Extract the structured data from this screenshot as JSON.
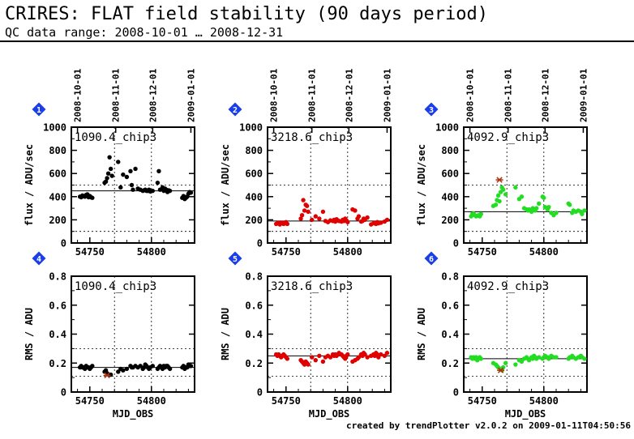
{
  "header": {
    "title": "CRIRES: FLAT field stability (90 days period)",
    "subtitle": "QC data range: 2008-10-01 … 2008-12-31"
  },
  "footer": {
    "credit": "created by trendPlotter v2.0.2 on 2009-01-11T04:50:56"
  },
  "colors": {
    "black_series": "#000000",
    "red_series": "#e00000",
    "green_series": "#22dd22",
    "outlier_marker": "#b03010",
    "badge": "#1a3fe8"
  },
  "chart_data": [
    {
      "type": "scatter",
      "panel": "1",
      "label": "1090.4_chip3",
      "xlabel": "",
      "ylabel": "flux / ADU/sec",
      "xlim": [
        54735,
        54835
      ],
      "ylim": [
        0,
        1000
      ],
      "xticks": [
        54750,
        54800
      ],
      "yticks": [
        0,
        200,
        400,
        600,
        800,
        1000
      ],
      "top_dates": [
        "2008-10-01",
        "2008-11-01",
        "2008-12-01",
        "2009-01-01"
      ],
      "reference_line": 450,
      "color": "black_series",
      "x": [
        54742,
        54743,
        54744,
        54745,
        54746,
        54747,
        54748,
        54749,
        54750,
        54751,
        54752,
        54762,
        54763,
        54764,
        54765,
        54766,
        54767,
        54768,
        54773,
        54775,
        54777,
        54780,
        54783,
        54784,
        54785,
        54787,
        54789,
        54791,
        54793,
        54794,
        54795,
        54796,
        54797,
        54798,
        54799,
        54801,
        54805,
        54806,
        54807,
        54809,
        54810,
        54811,
        54812,
        54813,
        54814,
        54815,
        54825,
        54826,
        54827,
        54828,
        54829,
        54830,
        54831,
        54832
      ],
      "y": [
        400,
        395,
        410,
        405,
        400,
        415,
        420,
        395,
        405,
        395,
        390,
        520,
        530,
        560,
        600,
        740,
        640,
        580,
        700,
        480,
        590,
        570,
        620,
        500,
        460,
        640,
        470,
        460,
        450,
        455,
        460,
        450,
        450,
        460,
        445,
        450,
        520,
        620,
        460,
        480,
        450,
        470,
        460,
        440,
        455,
        450,
        390,
        405,
        380,
        390,
        400,
        425,
        440,
        435
      ],
      "outliers": []
    },
    {
      "type": "scatter",
      "panel": "2",
      "label": "3218.6_chip3",
      "xlabel": "",
      "ylabel": "flux / ADU/sec",
      "xlim": [
        54735,
        54835
      ],
      "ylim": [
        0,
        1000
      ],
      "xticks": [
        54750,
        54800
      ],
      "yticks": [
        0,
        200,
        400,
        600,
        800,
        1000
      ],
      "top_dates": [
        "2008-10-01",
        "2008-11-01",
        "2008-12-01",
        "2009-01-01"
      ],
      "reference_line": 190,
      "color": "red_series",
      "x": [
        54742,
        54743,
        54744,
        54745,
        54746,
        54747,
        54748,
        54749,
        54750,
        54751,
        54762,
        54763,
        54764,
        54765,
        54766,
        54767,
        54768,
        54771,
        54774,
        54777,
        54780,
        54782,
        54784,
        54786,
        54788,
        54789,
        54790,
        54791,
        54792,
        54793,
        54795,
        54796,
        54797,
        54798,
        54799,
        54800,
        54804,
        54806,
        54808,
        54809,
        54811,
        54812,
        54813,
        54814,
        54816,
        54819,
        54821,
        54822,
        54823,
        54824,
        54825,
        54827,
        54830,
        54832
      ],
      "y": [
        165,
        170,
        175,
        160,
        170,
        175,
        165,
        170,
        180,
        165,
        210,
        240,
        370,
        280,
        330,
        320,
        270,
        200,
        230,
        210,
        270,
        190,
        180,
        195,
        190,
        200,
        185,
        205,
        195,
        190,
        185,
        200,
        190,
        210,
        195,
        180,
        290,
        280,
        210,
        230,
        185,
        190,
        210,
        200,
        220,
        160,
        170,
        175,
        165,
        180,
        170,
        175,
        185,
        200
      ],
      "outliers": []
    },
    {
      "type": "scatter",
      "panel": "3",
      "label": "4092.9_chip3",
      "xlabel": "",
      "ylabel": "flux / ADU/sec",
      "xlim": [
        54735,
        54835
      ],
      "ylim": [
        0,
        1000
      ],
      "xticks": [
        54750,
        54800
      ],
      "yticks": [
        0,
        200,
        400,
        600,
        800,
        1000
      ],
      "top_dates": [
        "2008-10-01",
        "2008-11-01",
        "2008-12-01",
        "2009-01-01"
      ],
      "reference_line": 270,
      "color": "green_series",
      "x": [
        54741,
        54742,
        54743,
        54744,
        54745,
        54746,
        54747,
        54748,
        54749,
        54759,
        54761,
        54762,
        54763,
        54764,
        54765,
        54766,
        54767,
        54769,
        54777,
        54780,
        54782,
        54784,
        54786,
        54787,
        54788,
        54790,
        54791,
        54792,
        54793,
        54794,
        54796,
        54799,
        54800,
        54801,
        54803,
        54804,
        54806,
        54808,
        54810,
        54820,
        54821,
        54823,
        54824,
        54826,
        54828,
        54830,
        54831,
        54833
      ],
      "y": [
        230,
        250,
        255,
        240,
        230,
        235,
        240,
        230,
        250,
        320,
        330,
        370,
        410,
        360,
        440,
        480,
        460,
        420,
        480,
        380,
        400,
        300,
        290,
        280,
        290,
        270,
        300,
        285,
        280,
        300,
        340,
        400,
        390,
        310,
        290,
        310,
        260,
        240,
        260,
        340,
        330,
        260,
        280,
        270,
        280,
        270,
        250,
        280
      ],
      "outliers": [
        {
          "x": 54764,
          "y": 545
        }
      ]
    },
    {
      "type": "scatter",
      "panel": "4",
      "label": "1090.4_chip3",
      "xlabel": "MJD_OBS",
      "ylabel": "RMS / ADU",
      "xlim": [
        54735,
        54835
      ],
      "ylim": [
        0,
        0.8
      ],
      "xticks": [
        54750,
        54800
      ],
      "yticks": [
        0,
        0.2,
        0.4,
        0.6,
        0.8
      ],
      "reference_line": 0.17,
      "color": "black_series",
      "x": [
        54742,
        54743,
        54744,
        54745,
        54746,
        54747,
        54748,
        54749,
        54750,
        54751,
        54752,
        54762,
        54763,
        54764,
        54766,
        54767,
        54773,
        54775,
        54777,
        54780,
        54783,
        54784,
        54785,
        54787,
        54789,
        54791,
        54793,
        54794,
        54795,
        54796,
        54797,
        54798,
        54799,
        54801,
        54805,
        54806,
        54807,
        54809,
        54810,
        54811,
        54812,
        54813,
        54814,
        54815,
        54825,
        54826,
        54827,
        54828,
        54829,
        54830,
        54831,
        54832
      ],
      "y": [
        0.17,
        0.18,
        0.17,
        0.17,
        0.16,
        0.18,
        0.17,
        0.17,
        0.16,
        0.17,
        0.18,
        0.14,
        0.15,
        0.13,
        0.12,
        0.12,
        0.14,
        0.16,
        0.15,
        0.16,
        0.18,
        0.17,
        0.17,
        0.18,
        0.17,
        0.18,
        0.16,
        0.17,
        0.19,
        0.18,
        0.17,
        0.16,
        0.17,
        0.18,
        0.16,
        0.17,
        0.18,
        0.16,
        0.18,
        0.17,
        0.18,
        0.18,
        0.17,
        0.16,
        0.17,
        0.18,
        0.16,
        0.17,
        0.17,
        0.19,
        0.18,
        0.18
      ],
      "outliers": [
        {
          "x": 54764,
          "y": 0.115
        }
      ]
    },
    {
      "type": "scatter",
      "panel": "5",
      "label": "3218.6_chip3",
      "xlabel": "MJD_OBS",
      "ylabel": "RMS / ADU",
      "xlim": [
        54735,
        54835
      ],
      "ylim": [
        0,
        0.8
      ],
      "xticks": [
        54750,
        54800
      ],
      "yticks": [
        0,
        0.2,
        0.4,
        0.6,
        0.8
      ],
      "reference_line": 0.25,
      "color": "red_series",
      "x": [
        54742,
        54743,
        54744,
        54745,
        54746,
        54747,
        54748,
        54749,
        54750,
        54751,
        54762,
        54763,
        54764,
        54765,
        54766,
        54767,
        54768,
        54771,
        54774,
        54777,
        54780,
        54782,
        54784,
        54786,
        54788,
        54789,
        54790,
        54791,
        54792,
        54793,
        54795,
        54796,
        54797,
        54798,
        54799,
        54800,
        54804,
        54806,
        54808,
        54809,
        54811,
        54812,
        54813,
        54814,
        54816,
        54819,
        54821,
        54822,
        54823,
        54824,
        54825,
        54827,
        54830,
        54832
      ],
      "y": [
        0.26,
        0.25,
        0.26,
        0.25,
        0.24,
        0.25,
        0.26,
        0.25,
        0.24,
        0.23,
        0.22,
        0.21,
        0.2,
        0.19,
        0.21,
        0.2,
        0.19,
        0.24,
        0.22,
        0.25,
        0.21,
        0.24,
        0.25,
        0.24,
        0.26,
        0.25,
        0.26,
        0.25,
        0.26,
        0.27,
        0.26,
        0.25,
        0.24,
        0.23,
        0.25,
        0.26,
        0.21,
        0.22,
        0.23,
        0.24,
        0.26,
        0.25,
        0.27,
        0.26,
        0.24,
        0.25,
        0.26,
        0.25,
        0.27,
        0.26,
        0.24,
        0.26,
        0.25,
        0.27
      ],
      "outliers": []
    },
    {
      "type": "scatter",
      "panel": "6",
      "label": "4092.9_chip3",
      "xlabel": "MJD_OBS",
      "ylabel": "RMS / ADU",
      "xlim": [
        54735,
        54835
      ],
      "ylim": [
        0,
        0.8
      ],
      "xticks": [
        54750,
        54800
      ],
      "yticks": [
        0,
        0.2,
        0.4,
        0.6,
        0.8
      ],
      "reference_line": 0.23,
      "color": "green_series",
      "x": [
        54741,
        54742,
        54743,
        54744,
        54745,
        54746,
        54747,
        54748,
        54749,
        54759,
        54761,
        54762,
        54763,
        54765,
        54766,
        54767,
        54769,
        54777,
        54780,
        54782,
        54784,
        54786,
        54787,
        54788,
        54790,
        54791,
        54792,
        54793,
        54794,
        54796,
        54799,
        54800,
        54801,
        54803,
        54804,
        54806,
        54808,
        54810,
        54820,
        54821,
        54823,
        54824,
        54826,
        54828,
        54830,
        54831,
        54833
      ],
      "y": [
        0.24,
        0.23,
        0.24,
        0.23,
        0.24,
        0.22,
        0.23,
        0.24,
        0.23,
        0.2,
        0.19,
        0.18,
        0.17,
        0.16,
        0.15,
        0.17,
        0.2,
        0.19,
        0.22,
        0.21,
        0.23,
        0.24,
        0.23,
        0.22,
        0.24,
        0.23,
        0.25,
        0.24,
        0.23,
        0.24,
        0.23,
        0.24,
        0.25,
        0.24,
        0.23,
        0.25,
        0.24,
        0.24,
        0.23,
        0.24,
        0.25,
        0.24,
        0.23,
        0.24,
        0.25,
        0.24,
        0.23
      ],
      "outliers": [
        {
          "x": 54765,
          "y": 0.15
        }
      ]
    }
  ]
}
